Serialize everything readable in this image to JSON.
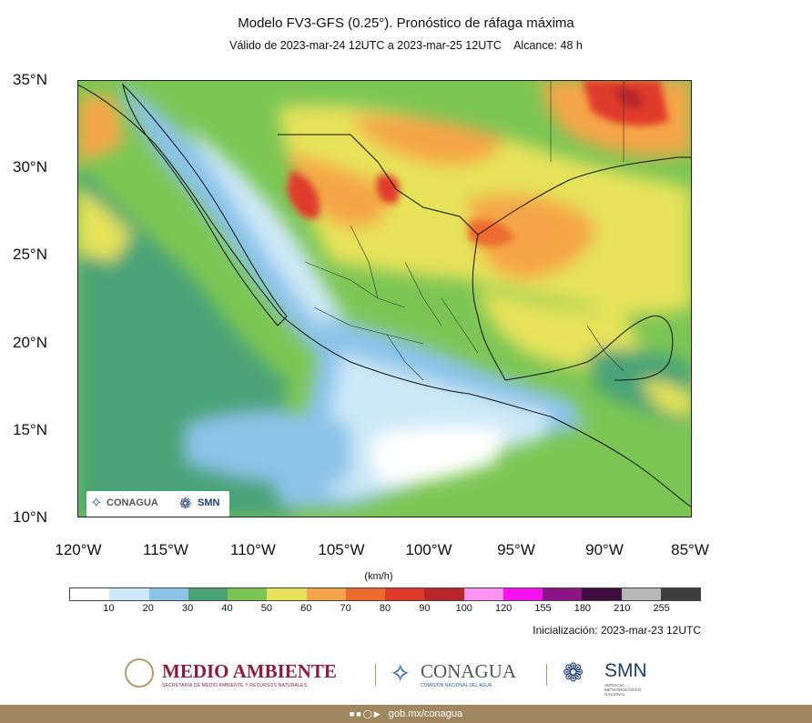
{
  "title": "Modelo FV3-GFS (0.25°). Pronóstico de ráfaga máxima",
  "subtitle": "Válido de 2023-mar-24 12UTC a 2023-mar-25 12UTC    Alcance: 48 h",
  "lat_labels": [
    "35°N",
    "30°N",
    "25°N",
    "20°N",
    "15°N",
    "10°N"
  ],
  "lon_labels": [
    "120°W",
    "115°W",
    "110°W",
    "105°W",
    "100°W",
    "95°W",
    "90°W",
    "85°W"
  ],
  "units": "(km/h)",
  "colorbar": {
    "ticks": [
      "10",
      "20",
      "30",
      "40",
      "50",
      "60",
      "70",
      "80",
      "90",
      "100",
      "120",
      "155",
      "180",
      "210",
      "255"
    ],
    "colors": [
      "#ffffff",
      "#cde8f7",
      "#8bc3e9",
      "#4aa377",
      "#7cc554",
      "#e6e25a",
      "#f5a547",
      "#ed6a2d",
      "#e03a2b",
      "#b8262a",
      "#ff92f2",
      "#ff10f0",
      "#8b1586",
      "#3e0f3d",
      "#b7b7b7",
      "#3d3d3d"
    ]
  },
  "init_text": "Inicialización: 2023-mar-23 12UTC",
  "map_badge": {
    "left": "CONAGUA",
    "right": "SMN"
  },
  "logos": {
    "medio_ambiente": "MEDIO AMBIENTE",
    "medio_ambiente_sub": "SECRETARÍA DE MEDIO AMBIENTE Y RECURSOS NATURALES",
    "conagua": "CONAGUA",
    "conagua_sub": "COMISIÓN NACIONAL DEL AGUA",
    "smn": "SMN",
    "smn_sub": "SERVICIO METEOROLÓGICO NACIONAL"
  },
  "footer": "gob.mx/conagua"
}
